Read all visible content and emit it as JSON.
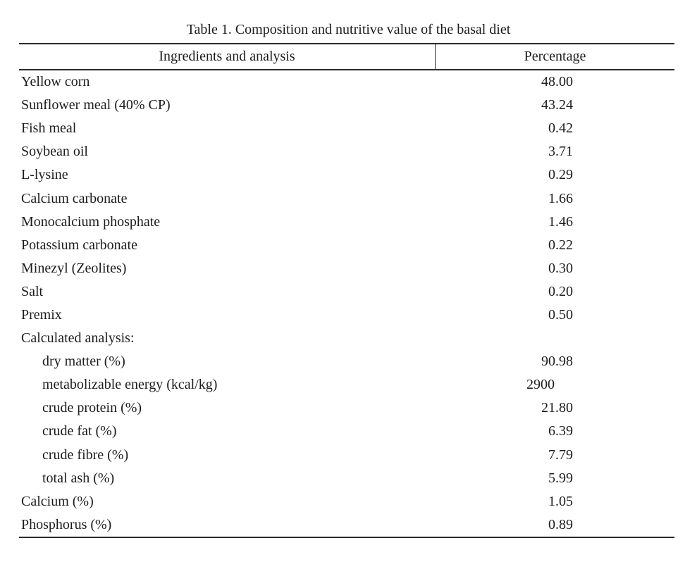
{
  "caption": "Table 1. Composition and nutritive value of the basal diet",
  "table": {
    "columns": {
      "ingredients": "Ingredients and analysis",
      "percentage": "Percentage"
    },
    "rows": [
      {
        "label": "Yellow corn",
        "value": "48.00"
      },
      {
        "label": "Sunflower meal (40% CP)",
        "value": "43.24"
      },
      {
        "label": "Fish meal",
        "value": "0.42"
      },
      {
        "label": "Soybean oil",
        "value": "3.71"
      },
      {
        "label": "L-lysine",
        "value": "0.29"
      },
      {
        "label": "Calcium carbonate",
        "value": "1.66"
      },
      {
        "label": "Monocalcium phosphate",
        "value": "1.46"
      },
      {
        "label": "Potassium carbonate",
        "value": "0.22"
      },
      {
        "label": "Minezyl (Zeolites)",
        "value": "0.30"
      },
      {
        "label": "Salt",
        "value": "0.20"
      },
      {
        "label": "Premix",
        "value": "0.50"
      },
      {
        "label": "Calculated analysis:",
        "value": ""
      },
      {
        "label": "dry matter (%)",
        "value": "90.98"
      },
      {
        "label": "metabolizable energy (kcal/kg)",
        "value": "2900"
      },
      {
        "label": "crude protein (%)",
        "value": "21.80"
      },
      {
        "label": "crude fat (%)",
        "value": "6.39"
      },
      {
        "label": "crude fibre (%)",
        "value": "7.79"
      },
      {
        "label": "total ash (%)",
        "value": "5.99"
      },
      {
        "label": "Calcium (%)",
        "value": "1.05"
      },
      {
        "label": "Phosphorus (%)",
        "value": "0.89"
      }
    ],
    "text_color": "#1c1c1c",
    "rule_color": "#2b2b2b"
  }
}
